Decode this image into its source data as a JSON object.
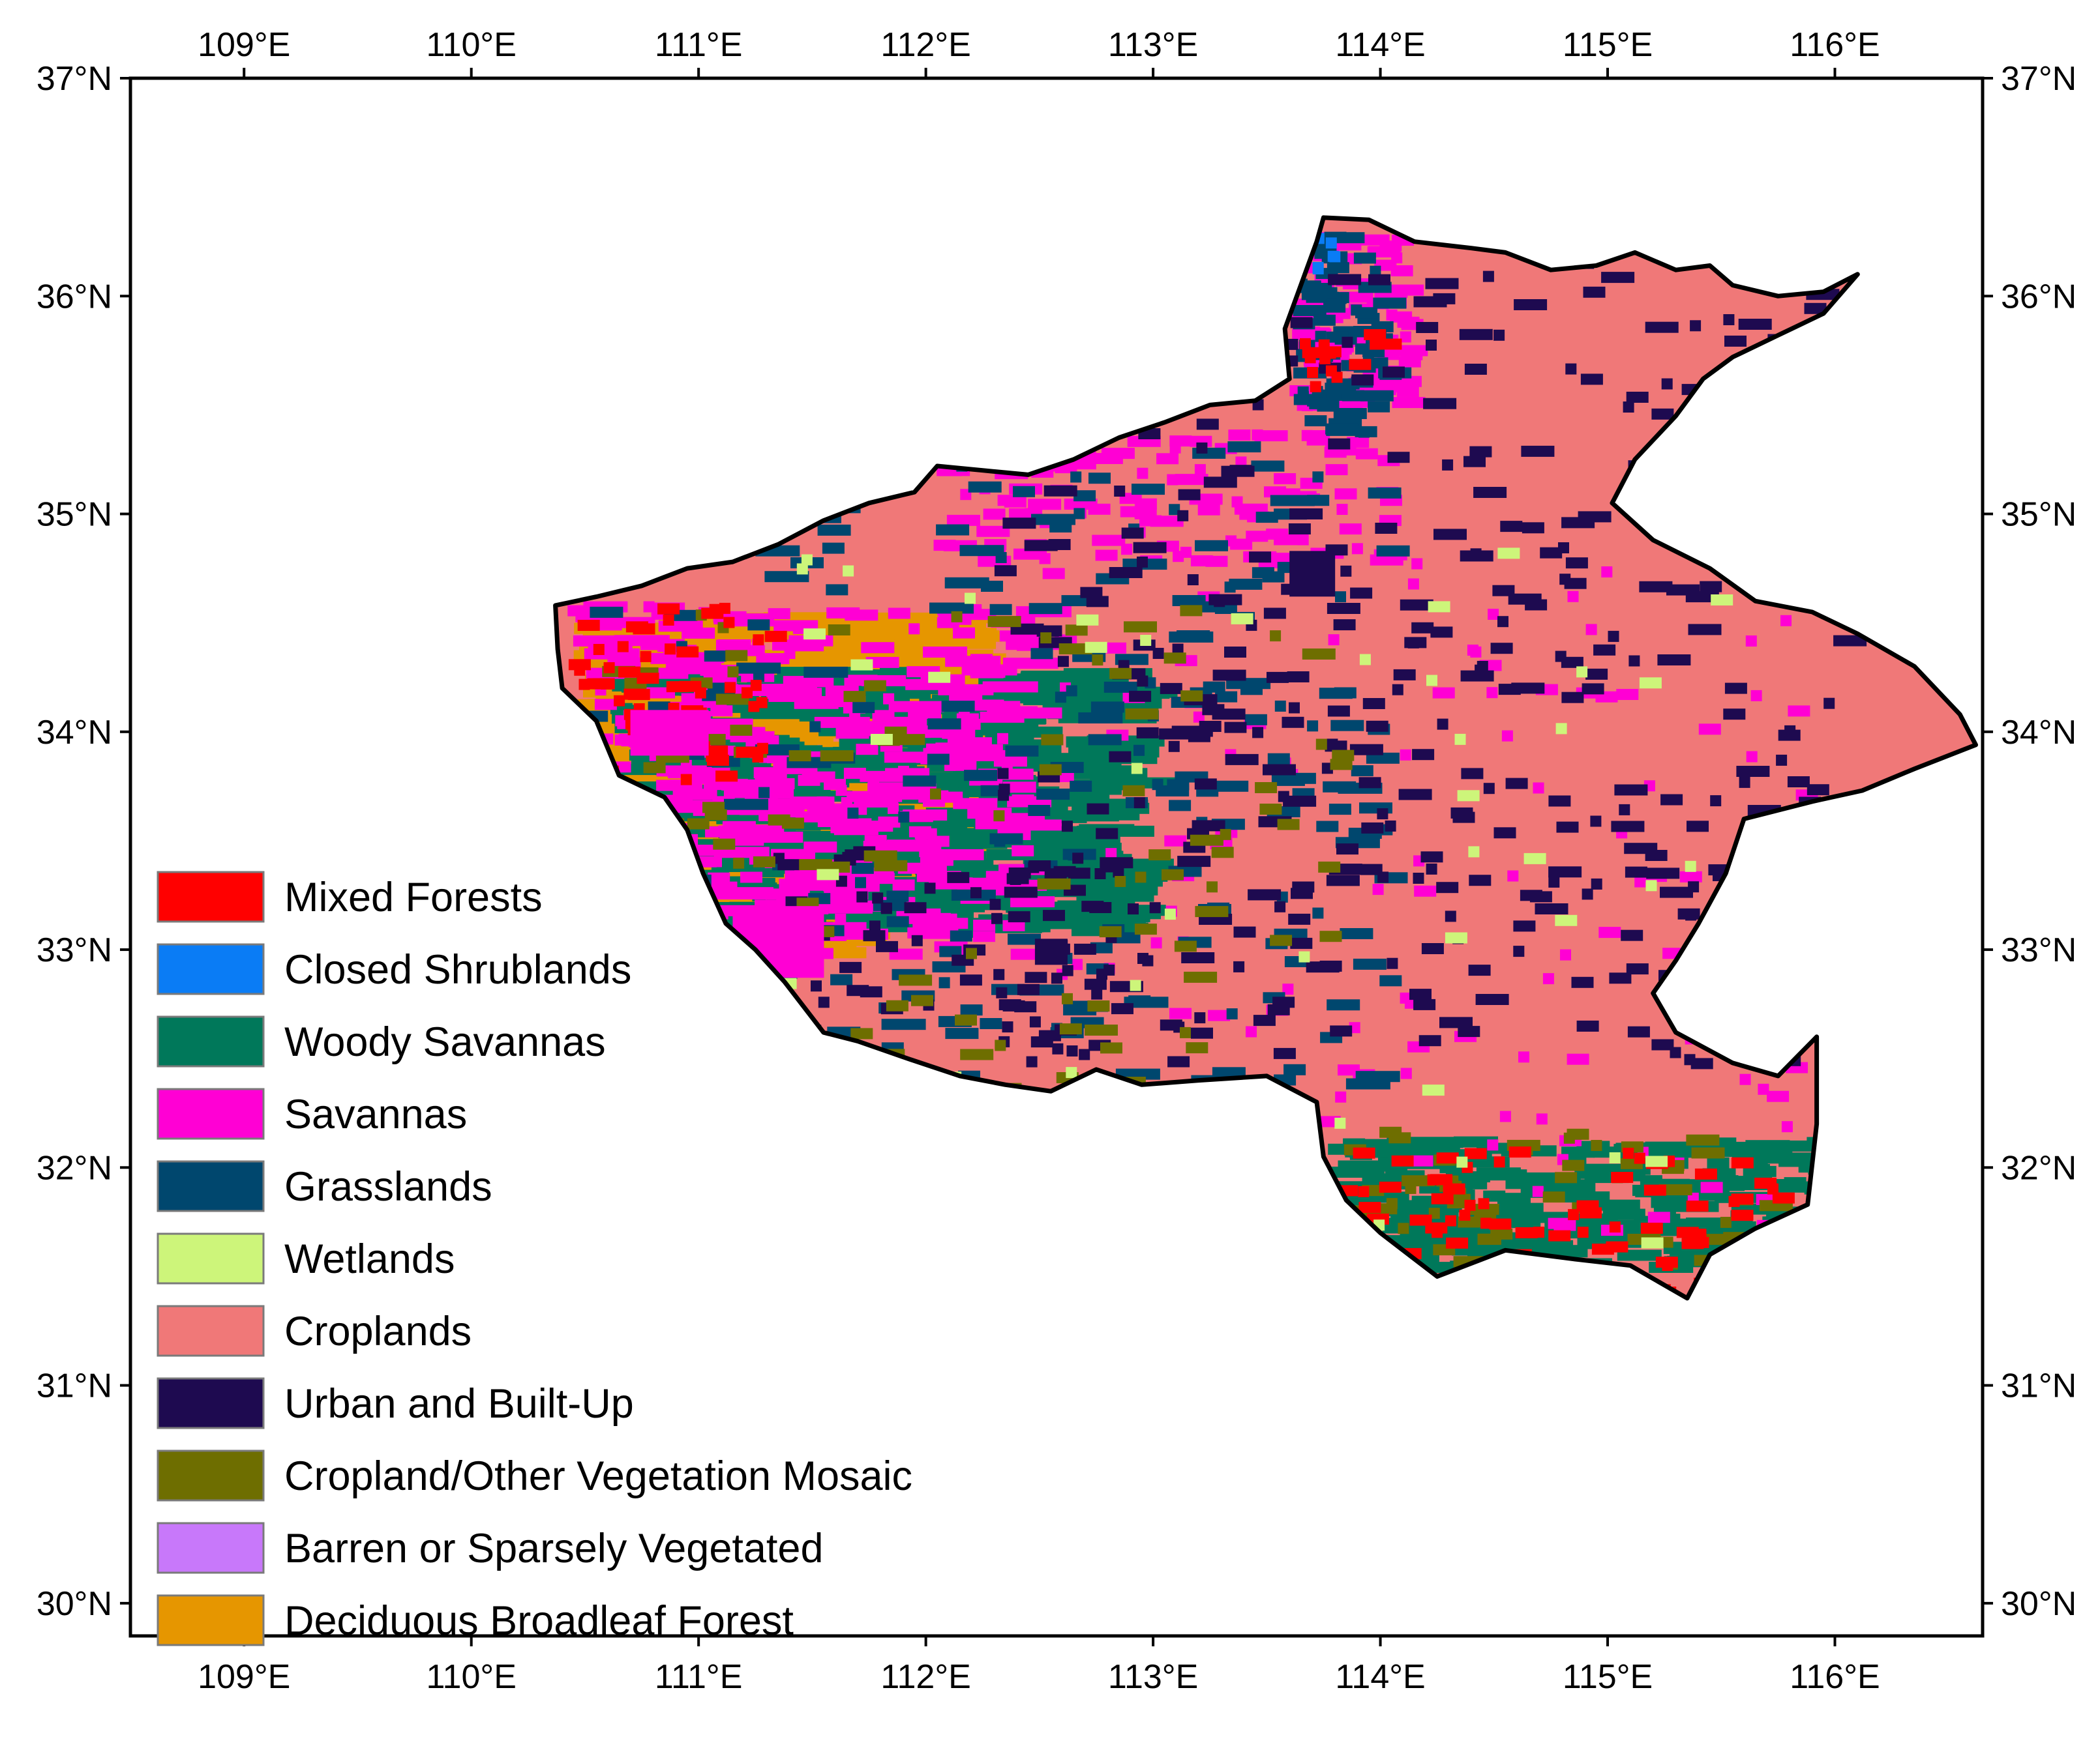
{
  "map": {
    "lon_labels": [
      "109°E",
      "110°E",
      "111°E",
      "112°E",
      "113°E",
      "114°E",
      "115°E",
      "116°E"
    ],
    "lat_labels": [
      "37°N",
      "36°N",
      "35°N",
      "34°N",
      "33°N",
      "32°N",
      "31°N",
      "30°N"
    ],
    "lon_values": [
      109,
      110,
      111,
      112,
      113,
      114,
      115,
      116
    ],
    "lat_values": [
      37,
      36,
      35,
      34,
      33,
      32,
      31,
      30
    ],
    "extent": {
      "lon_min": 108.5,
      "lon_max": 116.65,
      "lat_min": 29.85,
      "lat_max": 37.0
    },
    "background_class": "Croplands",
    "boundary_color": "#000000"
  },
  "legend": {
    "items": [
      {
        "label": "Mixed Forests",
        "color": "#ff0000"
      },
      {
        "label": "Closed Shrublands",
        "color": "#0a7cf5"
      },
      {
        "label": "Woody Savannas",
        "color": "#00785a"
      },
      {
        "label": "Savannas",
        "color": "#ff00d4"
      },
      {
        "label": "Grasslands",
        "color": "#00476e"
      },
      {
        "label": "Wetlands",
        "color": "#cdf57a"
      },
      {
        "label": "Croplands",
        "color": "#f07878"
      },
      {
        "label": "Urban and Built-Up",
        "color": "#1e0a50"
      },
      {
        "label": "Cropland/Other Vegetation Mosaic",
        "color": "#6e6e00"
      },
      {
        "label": "Barren or Sparsely Vegetated",
        "color": "#c878fa"
      },
      {
        "label": "Deciduous Broadleaf Forest",
        "color": "#e69600"
      }
    ]
  }
}
